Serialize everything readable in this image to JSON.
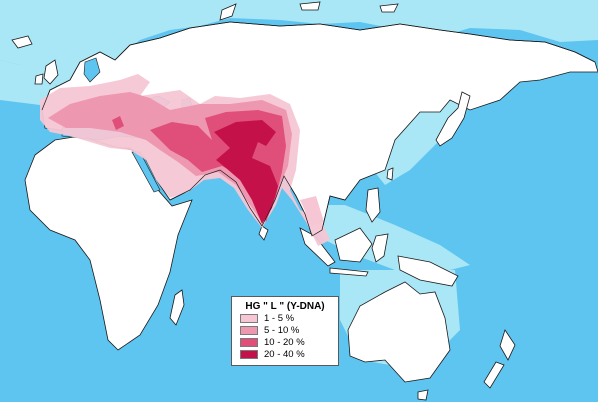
{
  "map": {
    "colors": {
      "ocean": "#5ec4f0",
      "shelf": "#a9e6f6",
      "land": "#ffffff",
      "coast": "#1a1a1a"
    }
  },
  "legend": {
    "title": "HG \" L \" (Y-DNA)",
    "items": [
      {
        "label": "1 -  5 %",
        "color": "#f6c6d4"
      },
      {
        "label": "5 - 10 %",
        "color": "#ee97b0"
      },
      {
        "label": "10 - 20 %",
        "color": "#df4f7a"
      },
      {
        "label": "20 - 40 %",
        "color": "#c4114a"
      }
    ]
  }
}
